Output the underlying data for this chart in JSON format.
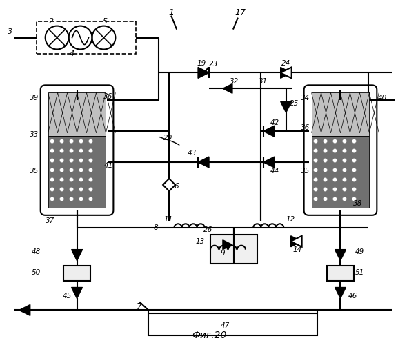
{
  "title": "Фиг.20",
  "bg": "#ffffff",
  "fw": 6.06,
  "fh": 5.0,
  "dpi": 100
}
